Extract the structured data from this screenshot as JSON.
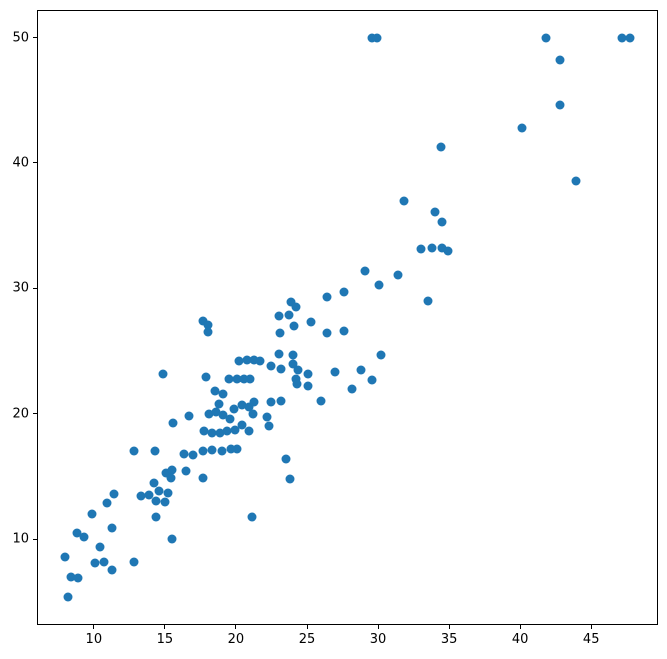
{
  "chart_data": {
    "type": "scatter",
    "title": "",
    "xlabel": "",
    "ylabel": "",
    "grid": false,
    "legend": null,
    "marker_color": "#1f77b4",
    "marker_diameter_px": 9,
    "xlim": [
      6.0,
      49.7
    ],
    "ylim": [
      3.15,
      52.2
    ],
    "x_ticks": [
      10,
      15,
      20,
      25,
      30,
      35,
      40,
      45
    ],
    "y_ticks": [
      10,
      20,
      30,
      40,
      50
    ],
    "points": [
      [
        29.6,
        50.0
      ],
      [
        29.9,
        50.0
      ],
      [
        41.8,
        50.0
      ],
      [
        47.2,
        50.0
      ],
      [
        47.7,
        50.0
      ],
      [
        42.8,
        48.2
      ],
      [
        42.8,
        44.6
      ],
      [
        40.1,
        42.8
      ],
      [
        34.4,
        41.3
      ],
      [
        43.9,
        38.6
      ],
      [
        31.8,
        37.0
      ],
      [
        34.0,
        36.1
      ],
      [
        34.5,
        35.3
      ],
      [
        33.0,
        33.1
      ],
      [
        33.8,
        33.2
      ],
      [
        34.5,
        33.2
      ],
      [
        34.9,
        33.0
      ],
      [
        33.5,
        29.0
      ],
      [
        29.1,
        31.4
      ],
      [
        30.1,
        30.3
      ],
      [
        31.4,
        31.1
      ],
      [
        27.6,
        29.7
      ],
      [
        26.4,
        29.3
      ],
      [
        23.9,
        28.9
      ],
      [
        24.2,
        28.5
      ],
      [
        23.7,
        27.9
      ],
      [
        23.0,
        27.8
      ],
      [
        25.3,
        27.3
      ],
      [
        23.1,
        26.4
      ],
      [
        26.4,
        26.4
      ],
      [
        27.6,
        26.6
      ],
      [
        17.7,
        27.4
      ],
      [
        18.0,
        27.1
      ],
      [
        18.0,
        26.5
      ],
      [
        24.1,
        27.0
      ],
      [
        23.0,
        24.8
      ],
      [
        24.0,
        24.7
      ],
      [
        20.2,
        24.2
      ],
      [
        20.8,
        24.3
      ],
      [
        21.3,
        24.3
      ],
      [
        21.7,
        24.2
      ],
      [
        22.5,
        23.8
      ],
      [
        23.2,
        23.6
      ],
      [
        24.0,
        24.0
      ],
      [
        24.4,
        23.5
      ],
      [
        24.2,
        22.8
      ],
      [
        24.3,
        22.4
      ],
      [
        25.1,
        23.2
      ],
      [
        26.95,
        23.3
      ],
      [
        14.9,
        23.2
      ],
      [
        17.9,
        22.9
      ],
      [
        19.5,
        22.75
      ],
      [
        20.05,
        22.8
      ],
      [
        20.6,
        22.8
      ],
      [
        21.0,
        22.8
      ],
      [
        25.1,
        22.2
      ],
      [
        30.2,
        24.7
      ],
      [
        28.8,
        23.5
      ],
      [
        29.6,
        22.7
      ],
      [
        28.2,
        22.0
      ],
      [
        26.0,
        21.0
      ],
      [
        18.5,
        21.8
      ],
      [
        19.1,
        21.55
      ],
      [
        18.8,
        20.75
      ],
      [
        19.85,
        20.4
      ],
      [
        20.4,
        20.7
      ],
      [
        20.9,
        20.5
      ],
      [
        21.3,
        20.9
      ],
      [
        22.5,
        20.9
      ],
      [
        23.2,
        21.0
      ],
      [
        18.1,
        20.0
      ],
      [
        18.6,
        20.1
      ],
      [
        19.1,
        19.9
      ],
      [
        21.2,
        20.0
      ],
      [
        22.2,
        19.7
      ],
      [
        22.3,
        19.0
      ],
      [
        19.6,
        19.6
      ],
      [
        20.4,
        19.1
      ],
      [
        20.95,
        18.65
      ],
      [
        15.6,
        19.3
      ],
      [
        16.7,
        19.8
      ],
      [
        17.75,
        18.6
      ],
      [
        18.3,
        18.5
      ],
      [
        18.9,
        18.5
      ],
      [
        19.4,
        18.6
      ],
      [
        19.9,
        18.7
      ],
      [
        20.1,
        17.2
      ],
      [
        12.85,
        17.05
      ],
      [
        14.3,
        17.0
      ],
      [
        16.35,
        16.8
      ],
      [
        17.0,
        16.7
      ],
      [
        17.65,
        17.0
      ],
      [
        18.3,
        17.1
      ],
      [
        19.0,
        17.0
      ],
      [
        19.65,
        17.15
      ],
      [
        16.5,
        15.45
      ],
      [
        17.7,
        14.9
      ],
      [
        23.5,
        16.4
      ],
      [
        23.8,
        14.8
      ],
      [
        21.1,
        11.8
      ],
      [
        15.1,
        15.3
      ],
      [
        15.5,
        15.5
      ],
      [
        15.4,
        14.9
      ],
      [
        14.2,
        14.5
      ],
      [
        14.6,
        13.8
      ],
      [
        15.2,
        13.65
      ],
      [
        14.35,
        13.05
      ],
      [
        15.0,
        12.95
      ],
      [
        13.35,
        13.4
      ],
      [
        13.85,
        13.5
      ],
      [
        11.4,
        13.6
      ],
      [
        10.9,
        12.85
      ],
      [
        9.9,
        12.0
      ],
      [
        14.4,
        11.8
      ],
      [
        15.5,
        10.0
      ],
      [
        11.3,
        10.9
      ],
      [
        8.8,
        10.5
      ],
      [
        9.3,
        10.2
      ],
      [
        10.4,
        9.4
      ],
      [
        12.8,
        8.2
      ],
      [
        10.1,
        8.1
      ],
      [
        10.7,
        8.2
      ],
      [
        8.0,
        8.6
      ],
      [
        8.4,
        7.0
      ],
      [
        8.9,
        6.9
      ],
      [
        11.3,
        7.5
      ],
      [
        8.2,
        5.4
      ]
    ]
  },
  "layout_note": ""
}
